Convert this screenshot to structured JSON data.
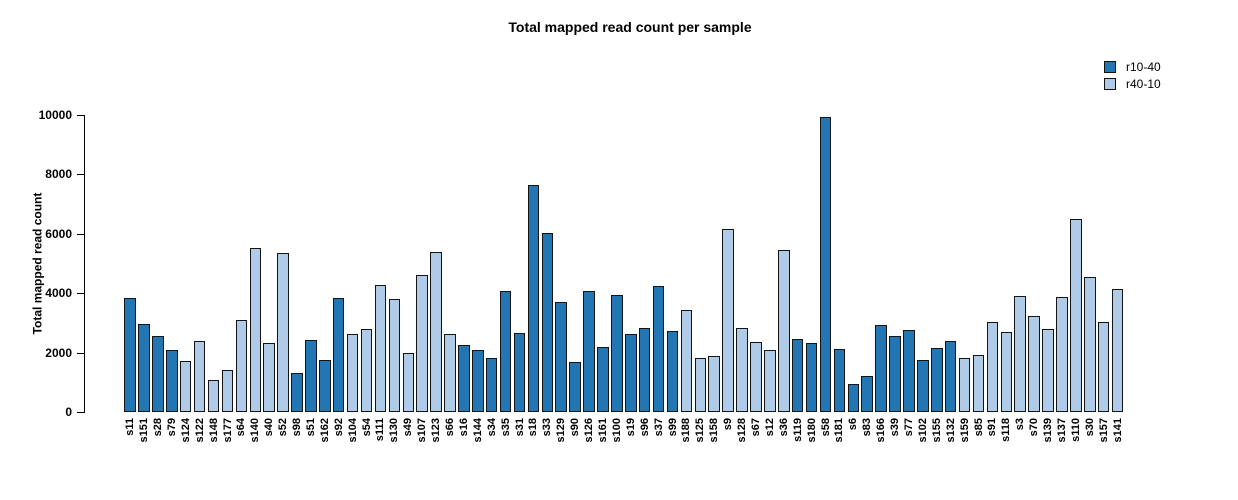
{
  "chart_data": {
    "type": "bar",
    "title": "Total mapped read count per sample",
    "xlabel": "",
    "ylabel": "Total mapped read count",
    "ylim": [
      0,
      10000
    ],
    "yticks": [
      0,
      2000,
      4000,
      6000,
      8000,
      10000
    ],
    "grid": false,
    "legend": {
      "position": "top-right",
      "entries": [
        {
          "label": "r10-40",
          "color": "#2276B4"
        },
        {
          "label": "r40-10",
          "color": "#B0CBE8"
        }
      ]
    },
    "bar_border_color": "#141414",
    "categories": [
      "s11",
      "s151",
      "s28",
      "s79",
      "s124",
      "s122",
      "s148",
      "s177",
      "s64",
      "s140",
      "s40",
      "s52",
      "s98",
      "s51",
      "s162",
      "s92",
      "s104",
      "s54",
      "s111",
      "s130",
      "s49",
      "s107",
      "s123",
      "s66",
      "s16",
      "s144",
      "s34",
      "s35",
      "s31",
      "s18",
      "s33",
      "s129",
      "s90",
      "s126",
      "s161",
      "s100",
      "s19",
      "s96",
      "s37",
      "s99",
      "s188",
      "s125",
      "s158",
      "s9",
      "s128",
      "s67",
      "s12",
      "s36",
      "s119",
      "s180",
      "s58",
      "s181",
      "s6",
      "s83",
      "s166",
      "s39",
      "s77",
      "s102",
      "s155",
      "s132",
      "s159",
      "s85",
      "s91",
      "s118",
      "s3",
      "s70",
      "s139",
      "s137",
      "s110",
      "s30",
      "s157",
      "s141"
    ],
    "values": [
      3850,
      2950,
      2560,
      2090,
      1710,
      2390,
      1080,
      1410,
      3100,
      5540,
      2310,
      5340,
      1320,
      2420,
      1750,
      3830,
      2620,
      2790,
      4270,
      3800,
      1990,
      4630,
      5380,
      2640,
      2270,
      2080,
      1810,
      4060,
      2660,
      7660,
      6040,
      3700,
      1670,
      4080,
      2200,
      3940,
      2640,
      2830,
      4260,
      2730,
      3430,
      1820,
      1880,
      6150,
      2830,
      2350,
      2090,
      5460,
      2460,
      2320,
      9940,
      2110,
      950,
      1230,
      2930,
      2570,
      2760,
      1740,
      2140,
      2400,
      1810,
      1930,
      3020,
      2690,
      3920,
      3230,
      2780,
      3880,
      6490,
      4560,
      3020,
      4140
    ],
    "groups": [
      "r10-40",
      "r10-40",
      "r10-40",
      "r10-40",
      "r40-10",
      "r40-10",
      "r40-10",
      "r40-10",
      "r40-10",
      "r40-10",
      "r40-10",
      "r40-10",
      "r10-40",
      "r10-40",
      "r10-40",
      "r10-40",
      "r40-10",
      "r40-10",
      "r40-10",
      "r40-10",
      "r40-10",
      "r40-10",
      "r40-10",
      "r40-10",
      "r10-40",
      "r10-40",
      "r10-40",
      "r10-40",
      "r10-40",
      "r10-40",
      "r10-40",
      "r10-40",
      "r10-40",
      "r10-40",
      "r10-40",
      "r10-40",
      "r10-40",
      "r10-40",
      "r10-40",
      "r10-40",
      "r40-10",
      "r40-10",
      "r40-10",
      "r40-10",
      "r40-10",
      "r40-10",
      "r40-10",
      "r40-10",
      "r10-40",
      "r10-40",
      "r10-40",
      "r10-40",
      "r10-40",
      "r10-40",
      "r10-40",
      "r10-40",
      "r10-40",
      "r10-40",
      "r10-40",
      "r10-40",
      "r40-10",
      "r40-10",
      "r40-10",
      "r40-10",
      "r40-10",
      "r40-10",
      "r40-10",
      "r40-10",
      "r40-10",
      "r40-10",
      "r40-10",
      "r40-10"
    ],
    "colors": {
      "r10-40": "#2276B4",
      "r40-10": "#B0CBE8"
    }
  }
}
